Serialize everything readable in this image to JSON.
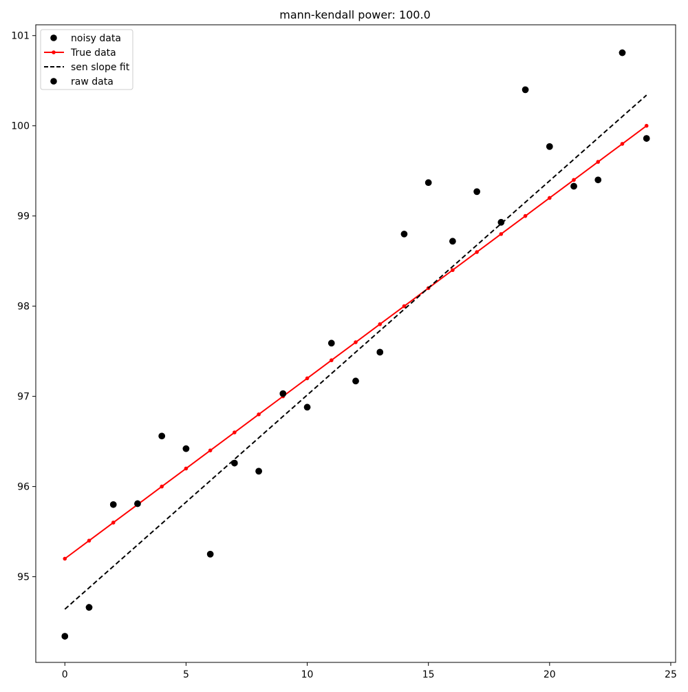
{
  "chart_data": {
    "type": "scatter",
    "title": "mann-kendall power: 100.0",
    "xlabel": "",
    "ylabel": "",
    "xlim": [
      -1.2,
      25.2
    ],
    "ylim": [
      94.05,
      101.12
    ],
    "xticks": [
      0,
      5,
      10,
      15,
      20,
      25
    ],
    "yticks": [
      95,
      96,
      97,
      98,
      99,
      100,
      101
    ],
    "grid": false,
    "legend_position": "top-left",
    "legend": [
      {
        "label": "noisy data",
        "kind": "scatter",
        "color": "#000000"
      },
      {
        "label": "True data",
        "kind": "line-marker",
        "color": "#ff0000"
      },
      {
        "label": "sen slope fit",
        "kind": "dashed",
        "color": "#000000"
      },
      {
        "label": "raw data",
        "kind": "scatter",
        "color": "#000000"
      }
    ],
    "series": [
      {
        "name": "noisy data",
        "kind": "scatter",
        "color": "#000000",
        "x": [
          0,
          1,
          2,
          3,
          4,
          5,
          6,
          7,
          8,
          9,
          10,
          11,
          12,
          13,
          14,
          15,
          16,
          17,
          18,
          19,
          20,
          21,
          22,
          23,
          24
        ],
        "y": [
          94.34,
          94.66,
          95.8,
          95.81,
          96.56,
          96.42,
          95.25,
          96.26,
          96.17,
          97.03,
          96.88,
          97.59,
          97.17,
          97.49,
          98.8,
          99.37,
          98.72,
          99.27,
          98.93,
          100.4,
          99.77,
          99.33,
          99.4,
          100.81,
          99.86
        ]
      },
      {
        "name": "True data",
        "kind": "line-marker",
        "color": "#ff0000",
        "x": [
          0,
          1,
          2,
          3,
          4,
          5,
          6,
          7,
          8,
          9,
          10,
          11,
          12,
          13,
          14,
          15,
          16,
          17,
          18,
          19,
          20,
          21,
          22,
          23,
          24
        ],
        "y": [
          95.2,
          95.4,
          95.6,
          95.8,
          96.0,
          96.2,
          96.4,
          96.6,
          96.8,
          97.0,
          97.2,
          97.4,
          97.6,
          97.8,
          98.0,
          98.2,
          98.4,
          98.6,
          98.8,
          99.0,
          99.2,
          99.4,
          99.6,
          99.8,
          100.0
        ]
      },
      {
        "name": "sen slope fit",
        "kind": "dashed",
        "color": "#000000",
        "x": [
          0,
          24
        ],
        "y": [
          94.64,
          100.34
        ]
      },
      {
        "name": "raw data",
        "kind": "scatter",
        "color": "#000000",
        "x": [
          0,
          1,
          2,
          3,
          4,
          5,
          6,
          7,
          8,
          9,
          10,
          11,
          12,
          13,
          14,
          15,
          16,
          17,
          18,
          19,
          20,
          21,
          22,
          23,
          24
        ],
        "y": [
          94.34,
          94.66,
          95.8,
          95.81,
          96.56,
          96.42,
          95.25,
          96.26,
          96.17,
          97.03,
          96.88,
          97.59,
          97.17,
          97.49,
          98.8,
          99.37,
          98.72,
          99.27,
          98.93,
          100.4,
          99.77,
          99.33,
          99.4,
          100.81,
          99.86
        ]
      }
    ]
  }
}
